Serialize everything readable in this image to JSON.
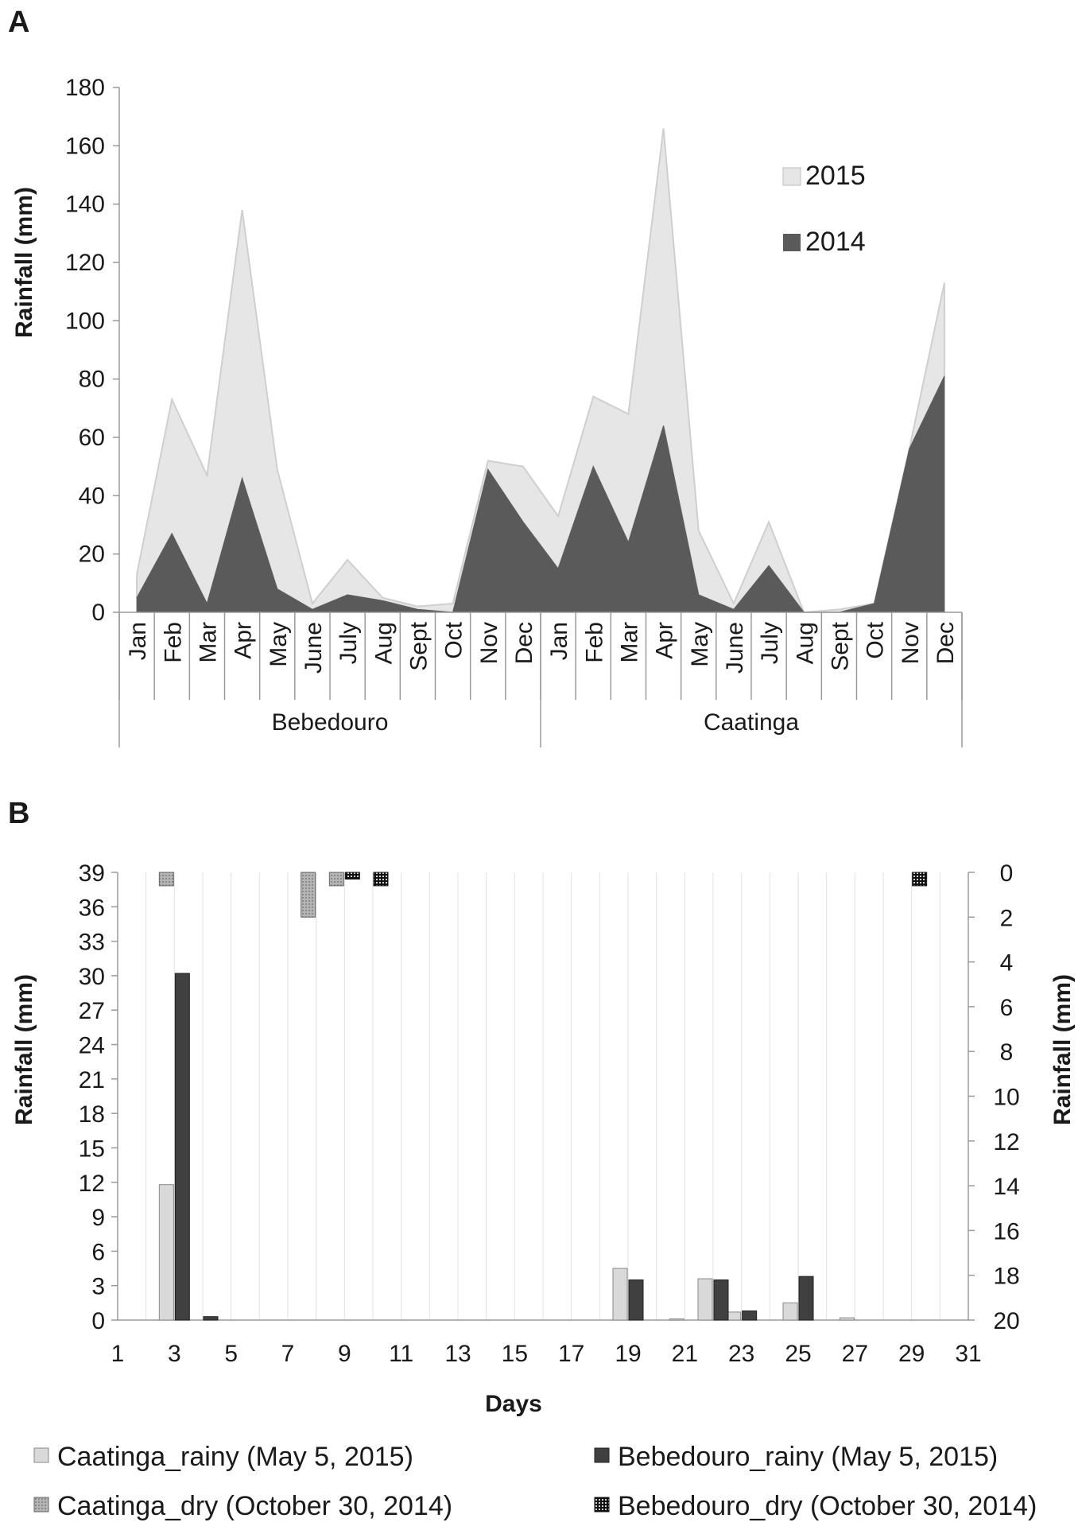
{
  "chart_data": [
    {
      "panel": "A",
      "type": "area",
      "stacked": true,
      "ylabel": "Rainfall (mm)",
      "ylim": [
        0,
        180
      ],
      "ytick_step": 20,
      "groups": [
        {
          "name": "Bebedouro",
          "months": [
            "Jan",
            "Feb",
            "Mar",
            "Apr",
            "May",
            "June",
            "July",
            "Aug",
            "Sept",
            "Oct",
            "Nov",
            "Dec"
          ]
        },
        {
          "name": "Caatinga",
          "months": [
            "Jan",
            "Feb",
            "Mar",
            "Apr",
            "May",
            "June",
            "July",
            "Aug",
            "Sept",
            "Oct",
            "Nov",
            "Dec"
          ]
        }
      ],
      "series": [
        {
          "name": "2014",
          "color": "#5a5a5a",
          "values": [
            5,
            27,
            3,
            46,
            8,
            1,
            6,
            4,
            1,
            0,
            49,
            31,
            15,
            50,
            24,
            64,
            6,
            1,
            16,
            0,
            0,
            3,
            56,
            81
          ]
        },
        {
          "name": "2015",
          "color": "#e6e6e6",
          "values": [
            8,
            46,
            44,
            92,
            41,
            2,
            12,
            1,
            1,
            3,
            3,
            19,
            18,
            24,
            44,
            102,
            22,
            2,
            15,
            0,
            1,
            0,
            0,
            32
          ]
        }
      ],
      "legend": [
        "2015",
        "2014"
      ],
      "legend_position": "top-right"
    },
    {
      "panel": "B",
      "type": "bar",
      "xlabel": "Days",
      "ylabel": "Rainfall (mm)",
      "ylabel_right": "Rainfall (mm)",
      "x_days": 31,
      "xticks": [
        1,
        3,
        5,
        7,
        9,
        11,
        13,
        15,
        17,
        19,
        21,
        23,
        25,
        27,
        29,
        31
      ],
      "ylim_left": [
        0,
        39
      ],
      "yticks_left": [
        0,
        3,
        6,
        9,
        12,
        15,
        18,
        21,
        24,
        27,
        30,
        33,
        36,
        39
      ],
      "ylim_right": [
        0,
        20
      ],
      "yticks_right": [
        0,
        2,
        4,
        6,
        8,
        10,
        12,
        14,
        16,
        18,
        20
      ],
      "right_axis_inverted": true,
      "series": [
        {
          "name": "Caatinga_rainy (May 5, 2015)",
          "axis": "left",
          "color": "#d9d9d9",
          "pattern": "none",
          "points": [
            {
              "day": 3,
              "value": 11.8
            },
            {
              "day": 19,
              "value": 4.5
            },
            {
              "day": 21,
              "value": 0.1
            },
            {
              "day": 22,
              "value": 3.6
            },
            {
              "day": 23,
              "value": 0.7
            },
            {
              "day": 25,
              "value": 1.5
            },
            {
              "day": 27,
              "value": 0.2
            }
          ]
        },
        {
          "name": "Bebedouro_rainy (May 5, 2015)",
          "axis": "left",
          "color": "#404040",
          "pattern": "none",
          "points": [
            {
              "day": 3,
              "value": 30.2
            },
            {
              "day": 4,
              "value": 0.3
            },
            {
              "day": 19,
              "value": 3.5
            },
            {
              "day": 22,
              "value": 3.5
            },
            {
              "day": 23,
              "value": 0.8
            },
            {
              "day": 25,
              "value": 3.8
            }
          ]
        },
        {
          "name": "Caatinga_dry (October 30, 2014)",
          "axis": "right",
          "color": "#a8a8a8",
          "pattern": "dots-light",
          "points": [
            {
              "day": 3,
              "value": 0.6
            },
            {
              "day": 8,
              "value": 2.0
            },
            {
              "day": 9,
              "value": 0.6
            }
          ]
        },
        {
          "name": "Bebedouro_dry (October 30, 2014)",
          "axis": "right",
          "color": "#2b2b2b",
          "pattern": "dots-dark",
          "points": [
            {
              "day": 9,
              "value": 0.3
            },
            {
              "day": 10,
              "value": 0.6
            },
            {
              "day": 29,
              "value": 0.6
            }
          ]
        }
      ],
      "legend_position": "bottom"
    }
  ]
}
